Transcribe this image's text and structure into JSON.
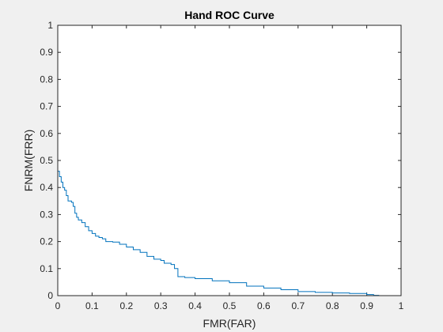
{
  "chart_data": {
    "type": "line",
    "title": "Hand ROC Curve",
    "xlabel": "FMR(FAR)",
    "ylabel": "FNRM(FRR)",
    "xlim": [
      0,
      1
    ],
    "ylim": [
      0,
      1
    ],
    "xticks": [
      "0",
      "0.1",
      "0.2",
      "0.3",
      "0.4",
      "0.5",
      "0.6",
      "0.7",
      "0.8",
      "0.9",
      "1"
    ],
    "yticks": [
      "0",
      "0.1",
      "0.2",
      "0.3",
      "0.4",
      "0.5",
      "0.6",
      "0.7",
      "0.8",
      "0.9",
      "1"
    ],
    "grid": false,
    "legend": "none",
    "line_color": "#0072bd",
    "series": [
      {
        "points": [
          [
            0,
            1
          ],
          [
            0,
            0.46
          ],
          [
            0.002,
            0.46
          ],
          [
            0.005,
            0.44
          ],
          [
            0.01,
            0.42
          ],
          [
            0.015,
            0.4
          ],
          [
            0.02,
            0.39
          ],
          [
            0.025,
            0.37
          ],
          [
            0.03,
            0.35
          ],
          [
            0.04,
            0.345
          ],
          [
            0.045,
            0.33
          ],
          [
            0.05,
            0.305
          ],
          [
            0.055,
            0.29
          ],
          [
            0.06,
            0.28
          ],
          [
            0.07,
            0.27
          ],
          [
            0.08,
            0.255
          ],
          [
            0.09,
            0.24
          ],
          [
            0.1,
            0.23
          ],
          [
            0.11,
            0.22
          ],
          [
            0.12,
            0.215
          ],
          [
            0.13,
            0.21
          ],
          [
            0.14,
            0.2
          ],
          [
            0.16,
            0.198
          ],
          [
            0.18,
            0.19
          ],
          [
            0.2,
            0.18
          ],
          [
            0.22,
            0.17
          ],
          [
            0.24,
            0.16
          ],
          [
            0.26,
            0.145
          ],
          [
            0.28,
            0.135
          ],
          [
            0.3,
            0.13
          ],
          [
            0.31,
            0.12
          ],
          [
            0.33,
            0.115
          ],
          [
            0.34,
            0.1
          ],
          [
            0.35,
            0.07
          ],
          [
            0.37,
            0.067
          ],
          [
            0.4,
            0.063
          ],
          [
            0.45,
            0.055
          ],
          [
            0.5,
            0.048
          ],
          [
            0.55,
            0.035
          ],
          [
            0.6,
            0.028
          ],
          [
            0.65,
            0.022
          ],
          [
            0.7,
            0.015
          ],
          [
            0.75,
            0.012
          ],
          [
            0.8,
            0.01
          ],
          [
            0.85,
            0.008
          ],
          [
            0.9,
            0.004
          ],
          [
            0.92,
            0.001
          ],
          [
            0.935,
            0
          ],
          [
            1,
            0
          ]
        ]
      }
    ]
  }
}
